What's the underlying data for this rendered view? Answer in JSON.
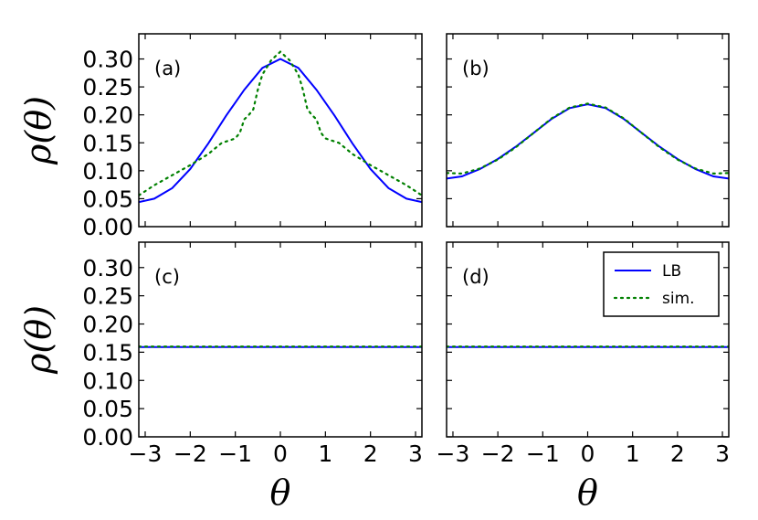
{
  "chart_data": [
    {
      "type": "line",
      "panel_label": "(a)",
      "xlabel": "",
      "ylabel": "ρ(θ)",
      "xlim": [
        -3.1416,
        3.1416
      ],
      "ylim": [
        0.0,
        0.345
      ],
      "xticks": [
        -3,
        -2,
        -1,
        0,
        1,
        2,
        3
      ],
      "yticks": [
        0.0,
        0.05,
        0.1,
        0.15,
        0.2,
        0.25,
        0.3
      ],
      "xtick_labels": [
        "",
        "",
        "",
        "",
        "",
        "",
        ""
      ],
      "ytick_labels": [
        "0.00",
        "0.05",
        "0.10",
        "0.15",
        "0.20",
        "0.25",
        "0.30"
      ],
      "series": [
        {
          "style": "solid",
          "color": "#0000ff",
          "x": [
            -3.1416,
            -2.8,
            -2.4,
            -2.0,
            -1.6,
            -1.2,
            -0.8,
            -0.4,
            0.0,
            0.4,
            0.8,
            1.2,
            1.6,
            2.0,
            2.4,
            2.8,
            3.1416
          ],
          "y": [
            0.044,
            0.05,
            0.069,
            0.103,
            0.149,
            0.199,
            0.245,
            0.284,
            0.3,
            0.284,
            0.245,
            0.199,
            0.149,
            0.103,
            0.069,
            0.05,
            0.044
          ]
        },
        {
          "style": "dotted",
          "color": "#008000",
          "x": [
            -3.1416,
            -2.8,
            -2.4,
            -2.0,
            -1.6,
            -1.3,
            -1.1,
            -1.0,
            -0.9,
            -0.8,
            -0.7,
            -0.6,
            -0.5,
            -0.4,
            -0.2,
            0.0,
            0.2,
            0.4,
            0.5,
            0.6,
            0.7,
            0.8,
            0.9,
            1.0,
            1.1,
            1.3,
            1.6,
            2.0,
            2.4,
            2.8,
            3.1416
          ],
          "y": [
            0.056,
            0.074,
            0.092,
            0.11,
            0.13,
            0.15,
            0.155,
            0.158,
            0.168,
            0.192,
            0.2,
            0.21,
            0.245,
            0.272,
            0.298,
            0.313,
            0.298,
            0.272,
            0.245,
            0.21,
            0.2,
            0.192,
            0.168,
            0.158,
            0.155,
            0.15,
            0.13,
            0.11,
            0.092,
            0.074,
            0.056
          ]
        }
      ]
    },
    {
      "type": "line",
      "panel_label": "(b)",
      "xlabel": "",
      "ylabel": "",
      "xlim": [
        -3.1416,
        3.1416
      ],
      "ylim": [
        0.0,
        0.345
      ],
      "xticks": [
        -3,
        -2,
        -1,
        0,
        1,
        2,
        3
      ],
      "yticks": [
        0.0,
        0.05,
        0.1,
        0.15,
        0.2,
        0.25,
        0.3
      ],
      "xtick_labels": [
        "",
        "",
        "",
        "",
        "",
        "",
        ""
      ],
      "ytick_labels": [
        "",
        "",
        "",
        "",
        "",
        "",
        ""
      ],
      "series": [
        {
          "style": "solid",
          "color": "#0000ff",
          "x": [
            -3.1416,
            -2.8,
            -2.4,
            -2.0,
            -1.6,
            -1.2,
            -0.8,
            -0.4,
            0.0,
            0.4,
            0.8,
            1.2,
            1.6,
            2.0,
            2.4,
            2.8,
            3.1416
          ],
          "y": [
            0.086,
            0.09,
            0.103,
            0.121,
            0.143,
            0.168,
            0.193,
            0.212,
            0.219,
            0.212,
            0.193,
            0.168,
            0.143,
            0.121,
            0.103,
            0.09,
            0.086
          ]
        },
        {
          "style": "dotted",
          "color": "#008000",
          "x": [
            -3.1416,
            -2.8,
            -2.4,
            -2.0,
            -1.6,
            -1.2,
            -0.8,
            -0.4,
            0.0,
            0.4,
            0.8,
            1.2,
            1.6,
            2.0,
            2.4,
            2.8,
            3.1416
          ],
          "y": [
            0.096,
            0.095,
            0.104,
            0.12,
            0.142,
            0.168,
            0.194,
            0.213,
            0.22,
            0.213,
            0.194,
            0.168,
            0.142,
            0.12,
            0.104,
            0.095,
            0.096
          ]
        }
      ]
    },
    {
      "type": "line",
      "panel_label": "(c)",
      "xlabel": "θ",
      "ylabel": "ρ(θ)",
      "xlim": [
        -3.1416,
        3.1416
      ],
      "ylim": [
        0.0,
        0.345
      ],
      "xticks": [
        -3,
        -2,
        -1,
        0,
        1,
        2,
        3
      ],
      "yticks": [
        0.0,
        0.05,
        0.1,
        0.15,
        0.2,
        0.25,
        0.3
      ],
      "xtick_labels": [
        "−3",
        "−2",
        "−1",
        "0",
        "1",
        "2",
        "3"
      ],
      "ytick_labels": [
        "0.00",
        "0.05",
        "0.10",
        "0.15",
        "0.20",
        "0.25",
        "0.30"
      ],
      "series": [
        {
          "style": "solid",
          "color": "#0000ff",
          "x": [
            -3.1416,
            3.1416
          ],
          "y": [
            0.159,
            0.159
          ]
        },
        {
          "style": "dotted",
          "color": "#008000",
          "x": [
            -3.1416,
            3.1416
          ],
          "y": [
            0.16,
            0.16
          ]
        }
      ]
    },
    {
      "type": "line",
      "panel_label": "(d)",
      "xlabel": "θ",
      "ylabel": "",
      "xlim": [
        -3.1416,
        3.1416
      ],
      "ylim": [
        0.0,
        0.345
      ],
      "xticks": [
        -3,
        -2,
        -1,
        0,
        1,
        2,
        3
      ],
      "yticks": [
        0.0,
        0.05,
        0.1,
        0.15,
        0.2,
        0.25,
        0.3
      ],
      "xtick_labels": [
        "−3",
        "−2",
        "−1",
        "0",
        "1",
        "2",
        "3"
      ],
      "ytick_labels": [
        "",
        "",
        "",
        "",
        "",
        "",
        ""
      ],
      "legend": {
        "placement": "top-right",
        "entries": [
          {
            "label": "LB",
            "style": "solid",
            "color": "#0000ff"
          },
          {
            "label": "sim.",
            "style": "dotted",
            "color": "#008000"
          }
        ]
      },
      "series": [
        {
          "style": "solid",
          "color": "#0000ff",
          "x": [
            -3.1416,
            3.1416
          ],
          "y": [
            0.159,
            0.159
          ]
        },
        {
          "style": "dotted",
          "color": "#008000",
          "x": [
            -3.1416,
            3.1416
          ],
          "y": [
            0.16,
            0.16
          ]
        }
      ]
    }
  ]
}
